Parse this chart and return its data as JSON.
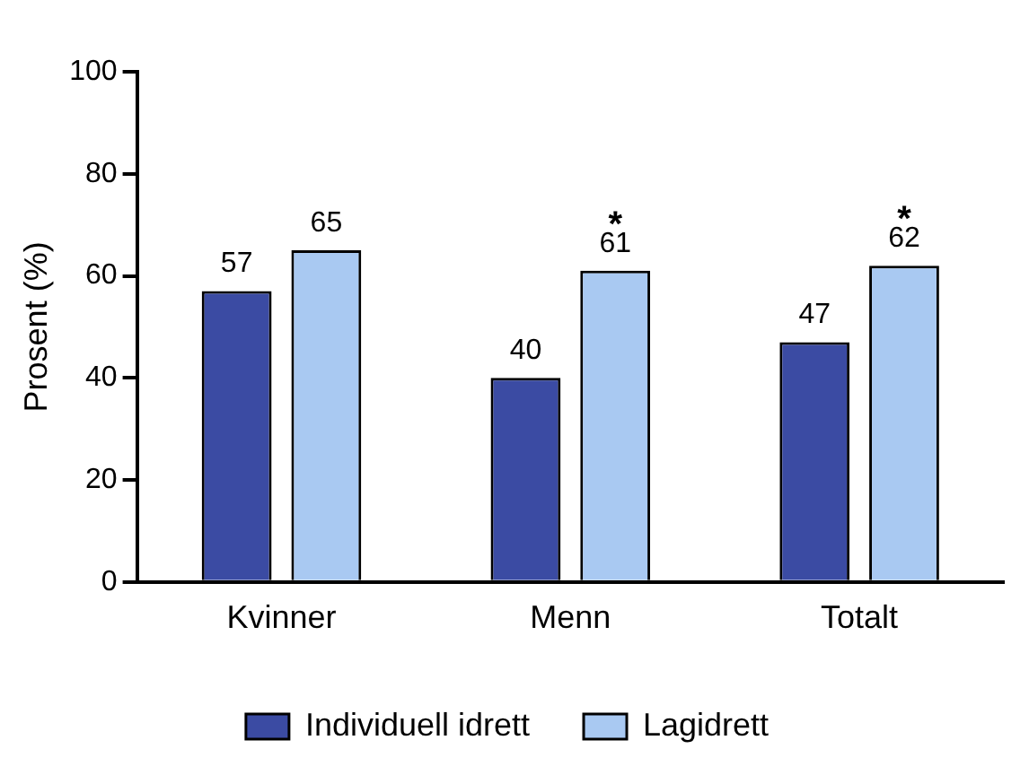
{
  "chart_data": {
    "type": "bar",
    "ylabel": "Prosent (%)",
    "categories": [
      "Kvinner",
      "Menn",
      "Totalt"
    ],
    "series": [
      {
        "name": "Individuell idrett",
        "color": "#3b4ba3",
        "values": [
          57,
          40,
          47
        ]
      },
      {
        "name": "Lagidrett",
        "color": "#a9c9f2",
        "values": [
          65,
          61,
          62
        ]
      }
    ],
    "ylim": [
      0,
      100
    ],
    "yticks": [
      0,
      20,
      40,
      60,
      80,
      100
    ],
    "grid": false,
    "legend": "bottom",
    "data_labels": true,
    "annotations": [
      "*",
      "*"
    ]
  }
}
